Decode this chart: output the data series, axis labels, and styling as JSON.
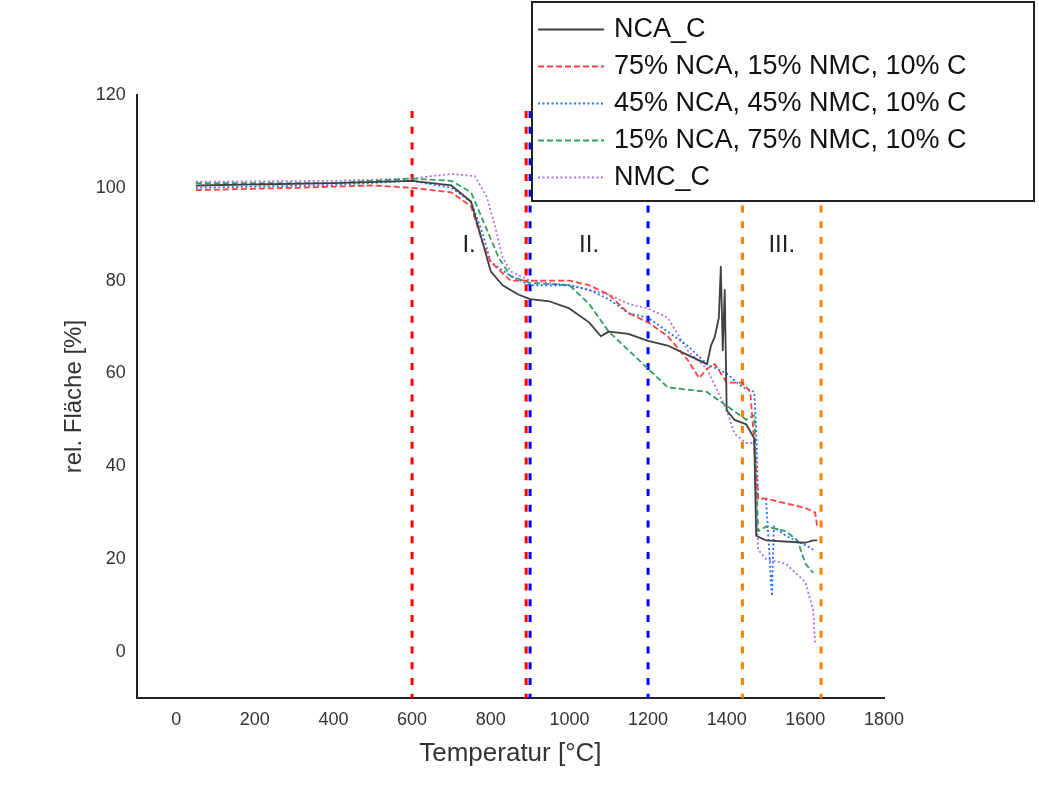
{
  "chart_data": {
    "type": "line",
    "xlabel": "Temperatur [°C]",
    "ylabel": "rel. Fläche [%]",
    "xlim": [
      -100,
      1800
    ],
    "xticks": [
      0,
      200,
      400,
      600,
      800,
      1000,
      1200,
      1400,
      1600,
      1800
    ],
    "ylim": [
      -10,
      120
    ],
    "yticks": [
      0,
      20,
      40,
      60,
      80,
      100,
      120
    ],
    "grid": false,
    "legend": "top right",
    "marker": "none",
    "series": [
      {
        "name": "NCA_C",
        "color": "#404040",
        "line_style": "solid",
        "x": [
          50,
          400,
          600,
          700,
          750,
          780,
          800,
          830,
          870,
          900,
          950,
          1000,
          1050,
          1080,
          1100,
          1150,
          1200,
          1250,
          1300,
          1350,
          1360,
          1370,
          1380,
          1385,
          1390,
          1395,
          1400,
          1420,
          1450,
          1470,
          1475,
          1500,
          1600,
          1620,
          1630
        ],
        "values": [
          100.5,
          101,
          101.5,
          100.5,
          97,
          88,
          82,
          79,
          77,
          76,
          75.5,
          74,
          71,
          68,
          69,
          68.5,
          67,
          66,
          64,
          62,
          66,
          68,
          72,
          83,
          65,
          78,
          52,
          50,
          49,
          46,
          25,
          24,
          23.5,
          24,
          24
        ]
      },
      {
        "name": "75% NCA, 15% NMC, 10% C",
        "color": "#ff4040",
        "line_style": "dashed",
        "x": [
          50,
          300,
          500,
          600,
          650,
          700,
          750,
          780,
          800,
          850,
          900,
          1000,
          1050,
          1100,
          1150,
          1200,
          1250,
          1300,
          1330,
          1350,
          1370,
          1400,
          1440,
          1460,
          1470,
          1480,
          1500,
          1550,
          1600,
          1625,
          1630
        ],
        "values": [
          99.5,
          100,
          100.5,
          100,
          99.5,
          99,
          96,
          88,
          84,
          80,
          80,
          80,
          79,
          77,
          73,
          71,
          68,
          63,
          59,
          61,
          62,
          58,
          58,
          56,
          45,
          33,
          33,
          32,
          31,
          30,
          27
        ]
      },
      {
        "name": "45% NCA, 45% NMC, 10% C",
        "color": "#2070ff",
        "line_style": "dotted",
        "x": [
          50,
          400,
          600,
          700,
          750,
          780,
          800,
          850,
          900,
          1000,
          1050,
          1100,
          1150,
          1200,
          1250,
          1300,
          1350,
          1400,
          1440,
          1470,
          1475,
          1480,
          1500,
          1515,
          1520,
          1550,
          1600,
          1620
        ],
        "values": [
          100,
          100.6,
          101.5,
          100,
          97,
          90,
          84,
          81,
          79,
          79,
          78,
          76,
          73,
          72,
          69,
          66,
          62,
          60,
          57,
          56,
          48,
          33,
          33,
          12,
          27,
          25,
          23,
          22
        ]
      },
      {
        "name": "15% NCA, 75% NMC, 10% C",
        "color": "#30a060",
        "line_style": "dashed",
        "x": [
          50,
          400,
          600,
          700,
          750,
          780,
          820,
          850,
          900,
          1000,
          1050,
          1100,
          1150,
          1200,
          1250,
          1350,
          1400,
          1450,
          1470,
          1480,
          1500,
          1550,
          1580,
          1600,
          1620
        ],
        "values": [
          101,
          101,
          102,
          101.5,
          99,
          93,
          85,
          81,
          79.5,
          79,
          75,
          69,
          65,
          61,
          57,
          56,
          53,
          50,
          51,
          26,
          27,
          26,
          24,
          19,
          17
        ]
      },
      {
        "name": "NMC_C",
        "color": "#b070e0",
        "line_style": "dotted",
        "x": [
          50,
          400,
          600,
          700,
          760,
          790,
          810,
          830,
          850,
          900,
          1000,
          1100,
          1150,
          1200,
          1250,
          1300,
          1350,
          1400,
          1420,
          1450,
          1470,
          1480,
          1500,
          1550,
          1600,
          1620,
          1625
        ],
        "values": [
          101.3,
          101.5,
          102,
          103,
          102.5,
          98,
          92,
          85,
          82,
          80,
          79,
          77,
          75,
          74,
          72,
          65,
          61,
          52,
          47,
          45,
          45,
          22,
          20,
          19,
          15,
          9,
          2
        ]
      }
    ],
    "ref_lines": [
      {
        "axis": "x",
        "value": 600,
        "color": "#ff0000",
        "line_style": "dotted"
      },
      {
        "axis": "x",
        "value": 890,
        "color": "#ff0000",
        "line_style": "dotted"
      },
      {
        "axis": "x",
        "value": 900,
        "color": "#0000ff",
        "line_style": "dotted"
      },
      {
        "axis": "x",
        "value": 1200,
        "color": "#0000ff",
        "line_style": "dotted"
      },
      {
        "axis": "x",
        "value": 1440,
        "color": "#ff8000",
        "line_style": "dotted"
      },
      {
        "axis": "x",
        "value": 1640,
        "color": "#ff8000",
        "line_style": "dotted"
      }
    ],
    "annotations": [
      "I.",
      "II.",
      "III."
    ]
  }
}
